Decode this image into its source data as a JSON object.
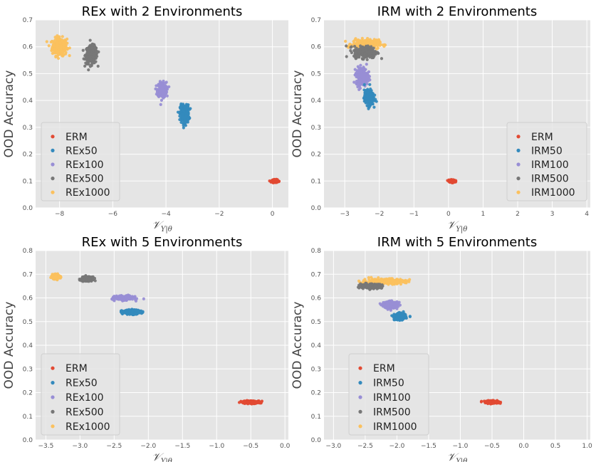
{
  "chart_data": [
    {
      "type": "scatter",
      "title": "REx with 2 Environments",
      "ylabel": "OOD Accuracy",
      "xlabel": "𝒱Y|θ",
      "xlim": [
        -8.9,
        0.6
      ],
      "ylim": [
        0,
        0.7
      ],
      "xticks": [
        -8,
        -6,
        -4,
        -2,
        0
      ],
      "yticks": [
        0.0,
        0.1,
        0.2,
        0.3,
        0.4,
        0.5,
        0.6,
        0.7
      ],
      "grid": true,
      "legend_position": "lower-left",
      "series": [
        {
          "name": "ERM",
          "color": "#E24A33",
          "center": [
            0.1,
            0.1
          ],
          "spread": [
            0.1,
            0.004
          ]
        },
        {
          "name": "REx50",
          "color": "#348ABD",
          "center": [
            -3.3,
            0.35
          ],
          "spread": [
            0.15,
            0.03
          ]
        },
        {
          "name": "REx100",
          "color": "#988ED5",
          "center": [
            -4.15,
            0.44
          ],
          "spread": [
            0.15,
            0.025
          ]
        },
        {
          "name": "REx500",
          "color": "#777777",
          "center": [
            -6.8,
            0.57
          ],
          "spread": [
            0.2,
            0.03
          ]
        },
        {
          "name": "REx1000",
          "color": "#FBC15E",
          "center": [
            -8.0,
            0.6
          ],
          "spread": [
            0.25,
            0.03
          ]
        }
      ]
    },
    {
      "type": "scatter",
      "title": "IRM with 2 Environments",
      "ylabel": "OOD Accuracy",
      "xlabel": "𝒱Y|θ",
      "xlim": [
        -3.6,
        4.1
      ],
      "ylim": [
        0,
        0.7
      ],
      "xticks": [
        -3,
        -2,
        -1,
        0,
        1,
        2,
        3,
        4
      ],
      "yticks": [
        0.0,
        0.1,
        0.2,
        0.3,
        0.4,
        0.5,
        0.6,
        0.7
      ],
      "grid": true,
      "legend_position": "lower-right",
      "series": [
        {
          "name": "ERM",
          "color": "#E24A33",
          "center": [
            0.1,
            0.1
          ],
          "spread": [
            0.08,
            0.004
          ]
        },
        {
          "name": "IRM50",
          "color": "#348ABD",
          "center": [
            -2.3,
            0.41
          ],
          "spread": [
            0.12,
            0.025
          ]
        },
        {
          "name": "IRM100",
          "color": "#988ED5",
          "center": [
            -2.5,
            0.49
          ],
          "spread": [
            0.15,
            0.03
          ]
        },
        {
          "name": "IRM500",
          "color": "#777777",
          "center": [
            -2.4,
            0.58
          ],
          "spread": [
            0.3,
            0.02
          ]
        },
        {
          "name": "IRM1000",
          "color": "#FBC15E",
          "center": [
            -2.4,
            0.61
          ],
          "spread": [
            0.35,
            0.015
          ]
        }
      ]
    },
    {
      "type": "scatter",
      "title": "REx with 5 Environments",
      "ylabel": "OOD Accuracy",
      "xlabel": "𝒱Y|θ",
      "xlim": [
        -3.65,
        0.05
      ],
      "ylim": [
        0,
        0.8
      ],
      "xticks": [
        -3.5,
        -3.0,
        -2.5,
        -2.0,
        -1.5,
        -1.0,
        -0.5,
        0.0
      ],
      "yticks": [
        0.0,
        0.1,
        0.2,
        0.3,
        0.4,
        0.5,
        0.6,
        0.7,
        0.8
      ],
      "grid": true,
      "legend_position": "lower-left",
      "series": [
        {
          "name": "ERM",
          "color": "#E24A33",
          "center": [
            -0.5,
            0.16
          ],
          "spread": [
            0.12,
            0.005
          ]
        },
        {
          "name": "REx50",
          "color": "#348ABD",
          "center": [
            -2.25,
            0.54
          ],
          "spread": [
            0.12,
            0.008
          ]
        },
        {
          "name": "REx100",
          "color": "#988ED5",
          "center": [
            -2.35,
            0.6
          ],
          "spread": [
            0.12,
            0.008
          ]
        },
        {
          "name": "REx500",
          "color": "#777777",
          "center": [
            -2.9,
            0.68
          ],
          "spread": [
            0.07,
            0.008
          ]
        },
        {
          "name": "REx1000",
          "color": "#FBC15E",
          "center": [
            -3.35,
            0.69
          ],
          "spread": [
            0.05,
            0.008
          ]
        }
      ]
    },
    {
      "type": "scatter",
      "title": "IRM with 5 Environments",
      "ylabel": "OOD Accuracy",
      "xlabel": "𝒱Y|θ",
      "xlim": [
        -3.15,
        1.05
      ],
      "ylim": [
        0,
        0.8
      ],
      "xticks": [
        -3.0,
        -2.5,
        -2.0,
        -1.5,
        -1.0,
        -0.5,
        0.0,
        0.5,
        1.0
      ],
      "yticks": [
        0.0,
        0.1,
        0.2,
        0.3,
        0.4,
        0.5,
        0.6,
        0.7,
        0.8
      ],
      "grid": true,
      "legend_position": "lower-left",
      "series": [
        {
          "name": "ERM",
          "color": "#E24A33",
          "center": [
            -0.5,
            0.16
          ],
          "spread": [
            0.1,
            0.005
          ]
        },
        {
          "name": "IRM50",
          "color": "#348ABD",
          "center": [
            -1.95,
            0.52
          ],
          "spread": [
            0.08,
            0.012
          ]
        },
        {
          "name": "IRM100",
          "color": "#988ED5",
          "center": [
            -2.1,
            0.57
          ],
          "spread": [
            0.1,
            0.012
          ]
        },
        {
          "name": "IRM500",
          "color": "#777777",
          "center": [
            -2.4,
            0.65
          ],
          "spread": [
            0.15,
            0.008
          ]
        },
        {
          "name": "IRM1000",
          "color": "#FBC15E",
          "center": [
            -2.2,
            0.67
          ],
          "spread": [
            0.3,
            0.01
          ]
        }
      ]
    }
  ]
}
